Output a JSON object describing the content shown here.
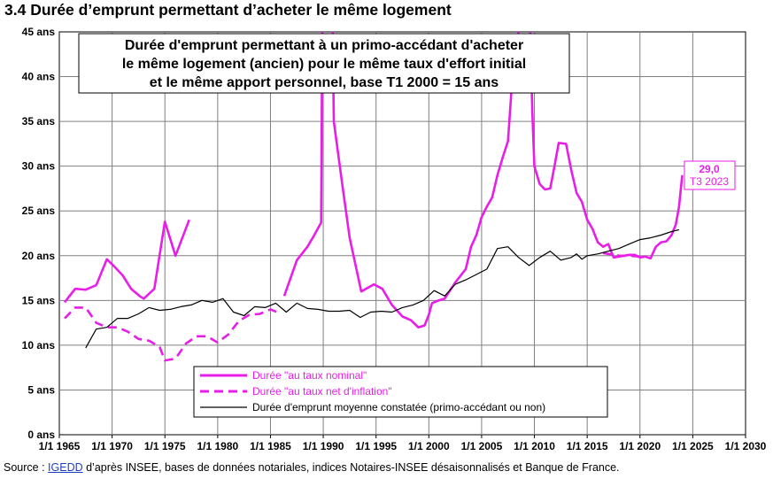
{
  "heading": "3.4 Durée d’emprunt permettant d’acheter le même logement",
  "source": {
    "prefix": "Source : ",
    "link": "IGEDD",
    "suffix": " d’après INSEE, bases de données notariales, indices Notaires-INSEE désaisonnalisés et Banque de France."
  },
  "chart_data": {
    "type": "line",
    "title_lines": [
      "Durée d'emprunt permettant à un primo-accédant d'acheter",
      "le même logement (ancien) pour le même taux d'effort initial",
      "et le même apport personnel, base T1 2000 = 15 ans"
    ],
    "x_tick_labels": [
      "1/1 1965",
      "1/1 1970",
      "1/1 1975",
      "1/1 1980",
      "1/1 1985",
      "1/1 1990",
      "1/1 1995",
      "1/1 2000",
      "1/1 2005",
      "1/1 2010",
      "1/1 2015",
      "1/1 2020",
      "1/1 2025",
      "1/1 2030"
    ],
    "y_tick_labels": [
      "0 ans",
      "5 ans",
      "10 ans",
      "15 ans",
      "20 ans",
      "25 ans",
      "30 ans",
      "35 ans",
      "40 ans",
      "45 ans"
    ],
    "xlim": [
      1965,
      2030
    ],
    "ylim": [
      0,
      45
    ],
    "grid": true,
    "legend_position": "bottom-center",
    "annotation": {
      "value": "29,0",
      "period": "T3 2023",
      "color": "#e81ee8"
    },
    "series": [
      {
        "name": "Durée \"au taux nominal\"",
        "color": "#e81ee8",
        "style": "solid",
        "segments": [
          [
            [
              1965.5,
              14.8
            ],
            [
              1966.5,
              16.3
            ],
            [
              1967.5,
              16.2
            ],
            [
              1968.5,
              16.7
            ],
            [
              1969.5,
              19.6
            ],
            [
              1970.2,
              18.8
            ],
            [
              1971,
              17.8
            ],
            [
              1971.8,
              16.3
            ],
            [
              1972.6,
              15.5
            ],
            [
              1973,
              15.2
            ],
            [
              1974,
              16.3
            ],
            [
              1975,
              23.8
            ],
            [
              1976,
              20
            ],
            [
              1977.3,
              24
            ]
          ],
          [
            [
              1986.3,
              15.5
            ],
            [
              1987.5,
              19.5
            ],
            [
              1988.5,
              21
            ],
            [
              1989,
              22
            ],
            [
              1989.8,
              23.7
            ],
            [
              1989.9,
              45
            ]
          ],
          [
            [
              1990.9,
              45
            ],
            [
              1991,
              35
            ],
            [
              1991.8,
              28
            ],
            [
              1992.5,
              22
            ],
            [
              1993.6,
              16
            ],
            [
              1994.8,
              16.8
            ],
            [
              1995.6,
              16.3
            ],
            [
              1996.5,
              14.5
            ],
            [
              1997.5,
              13.2
            ],
            [
              1998.3,
              12.8
            ],
            [
              1999,
              12
            ],
            [
              1999.6,
              12.2
            ],
            [
              2000,
              13.4
            ],
            [
              2000.3,
              14.7
            ],
            [
              2000.7,
              14.9
            ],
            [
              2001.5,
              15.2
            ],
            [
              2002.5,
              17
            ],
            [
              2003.5,
              18.5
            ],
            [
              2004,
              21
            ],
            [
              2004.5,
              22.3
            ],
            [
              2005,
              24.3
            ],
            [
              2005.5,
              25.5
            ],
            [
              2006,
              26.5
            ],
            [
              2006.5,
              29
            ],
            [
              2007,
              31
            ],
            [
              2007.5,
              32.8
            ],
            [
              2007.8,
              38
            ],
            [
              2008,
              42
            ],
            [
              2008.5,
              45
            ]
          ],
          [
            [
              2009.6,
              45
            ],
            [
              2009.8,
              36
            ],
            [
              2010,
              30
            ],
            [
              2010.5,
              28
            ],
            [
              2011,
              27.4
            ],
            [
              2011.5,
              27.5
            ],
            [
              2011.9,
              30
            ],
            [
              2012.3,
              32.6
            ],
            [
              2013,
              32.5
            ],
            [
              2013.5,
              29.5
            ],
            [
              2014,
              27
            ],
            [
              2014.5,
              26
            ],
            [
              2015,
              24
            ],
            [
              2015.5,
              23
            ],
            [
              2016,
              21.5
            ],
            [
              2016.5,
              21
            ],
            [
              2017,
              21.3
            ],
            [
              2017.5,
              19.8
            ],
            [
              2018,
              19.9
            ],
            [
              2018.5,
              20
            ],
            [
              2019,
              20.1
            ],
            [
              2019.5,
              20.1
            ],
            [
              2020,
              19.8
            ],
            [
              2020.5,
              19.9
            ],
            [
              2021,
              19.7
            ],
            [
              2021.5,
              21
            ],
            [
              2022,
              21.5
            ],
            [
              2022.5,
              21.6
            ],
            [
              2023,
              22.3
            ],
            [
              2023.4,
              23.5
            ],
            [
              2023.7,
              25.5
            ],
            [
              2024,
              29
            ]
          ]
        ]
      },
      {
        "name": "Durée \"au taux net d'inflation\"",
        "color": "#e81ee8",
        "style": "dashed",
        "segments": [
          [
            [
              1965.5,
              13
            ],
            [
              1966.5,
              14.2
            ],
            [
              1967.5,
              14.2
            ],
            [
              1968.5,
              12.5
            ],
            [
              1969.5,
              12
            ],
            [
              1970.5,
              12
            ],
            [
              1971.5,
              11.5
            ],
            [
              1972.5,
              10.7
            ],
            [
              1973.5,
              10.5
            ],
            [
              1974.5,
              9.8
            ],
            [
              1975,
              8.3
            ],
            [
              1976,
              8.5
            ],
            [
              1977,
              10.2
            ],
            [
              1978,
              11
            ],
            [
              1979,
              11
            ],
            [
              1980,
              10.3
            ],
            [
              1981,
              11.2
            ],
            [
              1982,
              12.7
            ],
            [
              1983,
              13.4
            ],
            [
              1984,
              13.5
            ],
            [
              1985,
              14
            ],
            [
              1986,
              13.5
            ]
          ],
          [
            [
              2016.5,
              20.3
            ],
            [
              2017,
              20.2
            ],
            [
              2018,
              20
            ],
            [
              2019,
              20
            ],
            [
              2020,
              19.9
            ]
          ]
        ]
      },
      {
        "name": "Durée d'emprunt moyenne constatée (primo-accédant ou non)",
        "color": "#000000",
        "style": "solid-thin",
        "segments": [
          [
            [
              1967.5,
              9.7
            ],
            [
              1968.5,
              11.8
            ],
            [
              1969.5,
              12
            ],
            [
              1970.5,
              13
            ],
            [
              1971.5,
              13
            ],
            [
              1972.5,
              13.5
            ],
            [
              1973.5,
              14.2
            ],
            [
              1974.5,
              13.9
            ],
            [
              1975.5,
              14
            ],
            [
              1976.5,
              14.3
            ],
            [
              1977.5,
              14.5
            ],
            [
              1978.5,
              15
            ],
            [
              1979.5,
              14.8
            ],
            [
              1980.5,
              15.2
            ],
            [
              1981.5,
              13.7
            ],
            [
              1982.5,
              13.3
            ],
            [
              1983.5,
              14.3
            ],
            [
              1984.5,
              14.2
            ],
            [
              1985.5,
              14.7
            ],
            [
              1986.5,
              13.7
            ],
            [
              1987.5,
              14.7
            ],
            [
              1988.5,
              14.1
            ],
            [
              1989.5,
              14
            ],
            [
              1990.5,
              13.8
            ],
            [
              1991.5,
              13.8
            ],
            [
              1992.5,
              13.9
            ],
            [
              1993.5,
              13.1
            ],
            [
              1994.5,
              13.7
            ],
            [
              1995.5,
              13.8
            ],
            [
              1996.5,
              13.7
            ],
            [
              1997.5,
              14.2
            ],
            [
              1998.5,
              14.5
            ],
            [
              1999.5,
              15
            ],
            [
              2000.5,
              16.1
            ],
            [
              2001.5,
              15.5
            ],
            [
              2002.5,
              16.8
            ],
            [
              2003.5,
              17.3
            ],
            [
              2004.5,
              17.9
            ],
            [
              2005.5,
              18.5
            ],
            [
              2006.5,
              20.8
            ],
            [
              2007.5,
              21
            ],
            [
              2008.5,
              19.8
            ],
            [
              2009.5,
              18.9
            ],
            [
              2010.5,
              19.8
            ],
            [
              2011.5,
              20.5
            ],
            [
              2012.5,
              19.5
            ],
            [
              2013.5,
              19.8
            ],
            [
              2014,
              20.2
            ],
            [
              2014.5,
              19.6
            ],
            [
              2015,
              20
            ],
            [
              2016,
              20.2
            ],
            [
              2017,
              20.5
            ],
            [
              2018,
              20.8
            ],
            [
              2019,
              21.3
            ],
            [
              2020,
              21.8
            ],
            [
              2021,
              22
            ],
            [
              2022,
              22.3
            ],
            [
              2023,
              22.7
            ],
            [
              2023.7,
              22.9
            ]
          ]
        ]
      }
    ]
  }
}
